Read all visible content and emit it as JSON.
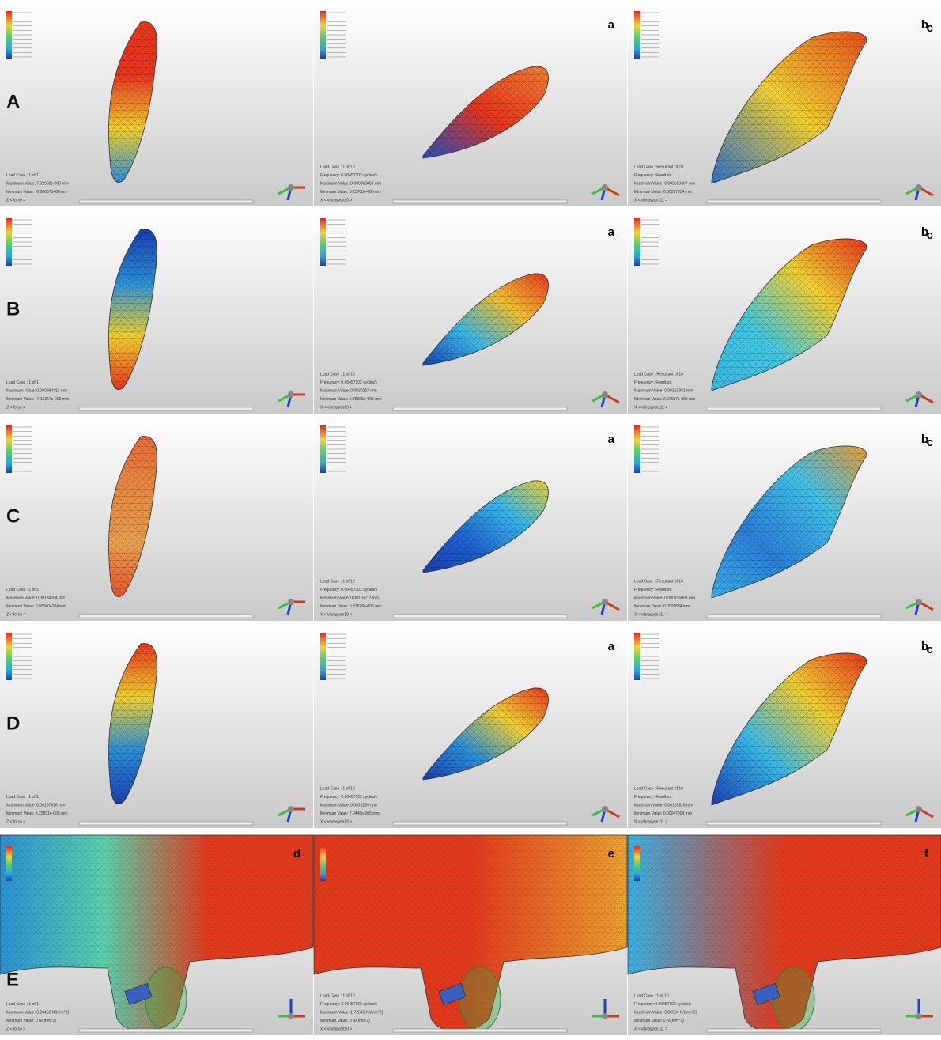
{
  "rows": [
    {
      "label": "A",
      "panels": [
        {
          "letter": null,
          "info": [
            "Load Case : 1 of 1",
            "Maximum Value: 7.02958e-005 mm",
            "Minimum Value: -0.000571468 mm",
            "Z < force >"
          ]
        },
        {
          "letter": "a",
          "info": [
            "Load Case : 1 of 10",
            "Frequency: 0.00457102 cycles/s",
            "Maximum Value: 0.000365869 mm",
            "Minimum Value: 3.23708e-005 mm",
            "X < vibrasyon10 >"
          ]
        },
        {
          "letter": "b",
          "info": [
            "Load Case : Resultant of 10",
            "Frequency: Resultant",
            "Maximum Value: 0.000613467 mm",
            "Minimum Value: 0.00017054 mm",
            "X < vibrasyon111 >"
          ]
        },
        {
          "letter": "c",
          "info": null
        }
      ]
    },
    {
      "label": "B",
      "panels": [
        {
          "letter": null,
          "info": [
            "Load Case : 1 of 1",
            "Maximum Value: 0.000994421 mm",
            "Minimum Value: -7.15347e-005 mm",
            "Z < force >"
          ]
        },
        {
          "letter": "a",
          "info": [
            "Load Case : 1 of 10",
            "Frequency: 0.00457102 cycles/s",
            "Maximum Value: 0.0030223 mm",
            "Minimum Value: 6.75695e-006 mm",
            "X < vibrasyon10 >"
          ]
        },
        {
          "letter": "b",
          "info": [
            "Load Case : Resultant of 10",
            "Frequency: Resultant",
            "Maximum Value: 0.00152061 mm",
            "Minimum Value: 2.97687e-005 mm",
            "X < vibrasyon111 >"
          ]
        },
        {
          "letter": "c",
          "info": null
        }
      ]
    },
    {
      "label": "C",
      "panels": [
        {
          "letter": null,
          "info": [
            "Load Case : 1 of 1",
            "Maximum Value: 0.00134094 mm",
            "Minimum Value: 0.000404284 mm",
            "Z < force >"
          ]
        },
        {
          "letter": "a",
          "info": [
            "Load Case : 1 of 10",
            "Frequency: 0.00457102 cycles/s",
            "Maximum Value: 0.00116212 mm",
            "Minimum Value: 5.31628e-006 mm",
            "X < vibrasyon10 >"
          ]
        },
        {
          "letter": "b",
          "info": [
            "Load Case : Resultant of 10",
            "Frequency: Resultant",
            "Maximum Value: 0.000826093 mm",
            "Minimum Value: 0.0001834 mm",
            "X < vibrasyon111 >"
          ]
        },
        {
          "letter": "c",
          "info": null
        }
      ]
    },
    {
      "label": "D",
      "panels": [
        {
          "letter": null,
          "info": [
            "Load Case : 1 of 1",
            "Maximum Value: 0.00107636 mm",
            "Minimum Value: 2.23691e-005 mm",
            "Z < force >"
          ]
        },
        {
          "letter": "a",
          "info": [
            "Load Case : 1 of 10",
            "Frequency: 0.00457102 cycles/s",
            "Maximum Value: 0.0029269 mm",
            "Minimum Value: 7.0445e-005 mm",
            "X < vibrasyon10 >"
          ]
        },
        {
          "letter": "b",
          "info": [
            "Load Case : Resultant of 10",
            "Frequency: Resultant",
            "Maximum Value: 0.00189826 mm",
            "Minimum Value: 0.00047004 mm",
            "X < vibrasyon111 >"
          ]
        },
        {
          "letter": "c",
          "info": null
        }
      ]
    },
    {
      "label": "E",
      "panels": [
        {
          "letter": "d",
          "info": [
            "Load Case : 1 of 1",
            "Maximum Value: 3.29452 N/(mm^2)",
            "Minimum Value: 0 N/(mm^2)",
            "Z < force >"
          ]
        },
        {
          "letter": "e",
          "info": [
            "Load Case : 1 of 10",
            "Frequency: 0.00457102 cycles/s",
            "Maximum Value: 1.72546 N/(mm^2)",
            "Minimum Value: 0 N/(mm^2)",
            "X < vibrasyon10 >"
          ]
        },
        {
          "letter": "f",
          "info": [
            "Load Case : 1 of 10",
            "Frequency: 0.00457102 cycles/s",
            "Maximum Value: 3.85534 N/(mm^2)",
            "Minimum Value: 0 N/(mm^2)",
            "X < vibrasyon111 >"
          ]
        },
        {
          "letter": null,
          "info": null
        }
      ]
    }
  ]
}
